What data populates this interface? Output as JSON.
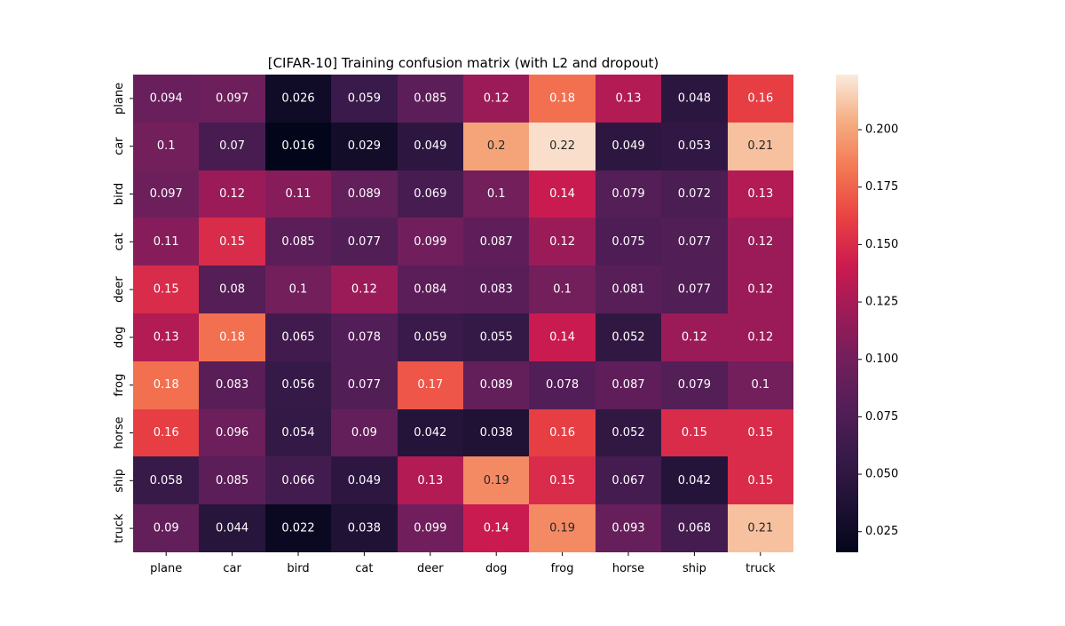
{
  "chart_data": {
    "type": "heatmap",
    "title": "[CIFAR-10] Training confusion matrix (with L2 and dropout)",
    "xlabel": "",
    "ylabel": "",
    "x_categories": [
      "plane",
      "car",
      "bird",
      "cat",
      "deer",
      "dog",
      "frog",
      "horse",
      "ship",
      "truck"
    ],
    "y_categories": [
      "plane",
      "car",
      "bird",
      "cat",
      "deer",
      "dog",
      "frog",
      "horse",
      "ship",
      "truck"
    ],
    "values": [
      [
        0.094,
        0.097,
        0.026,
        0.059,
        0.085,
        0.12,
        0.18,
        0.13,
        0.048,
        0.16
      ],
      [
        0.1,
        0.07,
        0.016,
        0.029,
        0.049,
        0.2,
        0.22,
        0.049,
        0.053,
        0.21
      ],
      [
        0.097,
        0.12,
        0.11,
        0.089,
        0.069,
        0.1,
        0.14,
        0.079,
        0.072,
        0.13
      ],
      [
        0.11,
        0.15,
        0.085,
        0.077,
        0.099,
        0.087,
        0.12,
        0.075,
        0.077,
        0.12
      ],
      [
        0.15,
        0.08,
        0.1,
        0.12,
        0.084,
        0.083,
        0.1,
        0.081,
        0.077,
        0.12
      ],
      [
        0.13,
        0.18,
        0.065,
        0.078,
        0.059,
        0.055,
        0.14,
        0.052,
        0.12,
        0.12
      ],
      [
        0.18,
        0.083,
        0.056,
        0.077,
        0.17,
        0.089,
        0.078,
        0.087,
        0.079,
        0.1
      ],
      [
        0.16,
        0.096,
        0.054,
        0.09,
        0.042,
        0.038,
        0.16,
        0.052,
        0.15,
        0.15
      ],
      [
        0.058,
        0.085,
        0.066,
        0.049,
        0.13,
        0.19,
        0.15,
        0.067,
        0.042,
        0.15
      ],
      [
        0.09,
        0.044,
        0.022,
        0.038,
        0.099,
        0.14,
        0.19,
        0.093,
        0.068,
        0.21
      ]
    ],
    "value_range": [
      0.016,
      0.224
    ],
    "colormap": "rocket",
    "colorbar": {
      "ticks": [
        0.025,
        0.05,
        0.075,
        0.1,
        0.125,
        0.15,
        0.175,
        0.2
      ],
      "tick_labels": [
        "0.025",
        "0.050",
        "0.075",
        "0.100",
        "0.125",
        "0.150",
        "0.175",
        "0.200"
      ]
    },
    "grid": false
  }
}
